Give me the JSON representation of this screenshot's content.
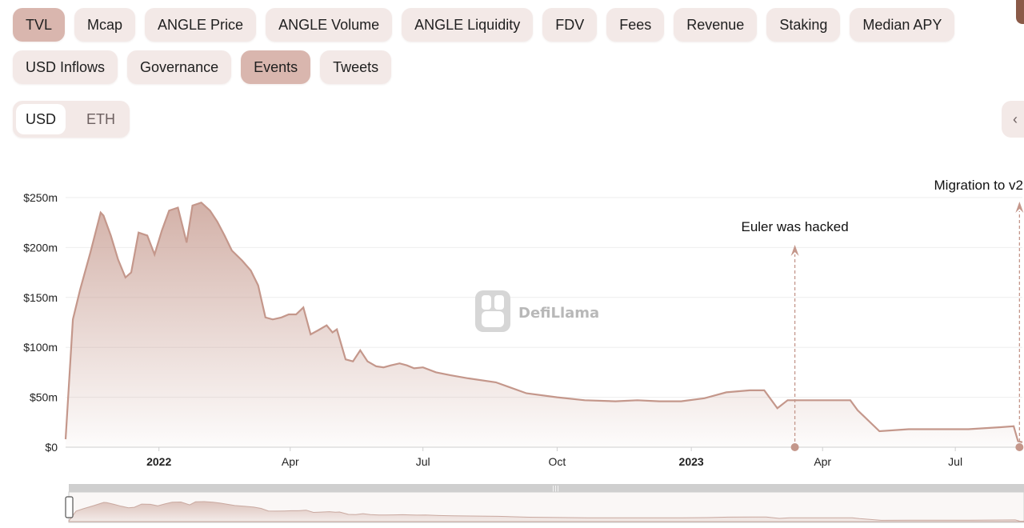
{
  "tabs_row1": [
    "TVL",
    "Mcap",
    "ANGLE Price",
    "ANGLE Volume",
    "ANGLE Liquidity",
    "FDV",
    "Fees",
    "Revenue",
    "Staking",
    "Median APY"
  ],
  "tabs_row2": [
    "USD Inflows",
    "Governance",
    "Events",
    "Tweets"
  ],
  "active_tabs": [
    "TVL",
    "Events"
  ],
  "currency": {
    "options": [
      "USD",
      "ETH"
    ],
    "selected": "USD"
  },
  "watermark": "DefiLlama",
  "colors": {
    "accent": "#c4978b",
    "tab_bg": "#f3e9e7",
    "tab_active": "#d9b6ae"
  },
  "chart_data": {
    "type": "area",
    "title": "",
    "xlabel": "",
    "ylabel": "",
    "y_ticks": [
      "$0",
      "$50m",
      "$100m",
      "$150m",
      "$200m",
      "$250m"
    ],
    "ylim": [
      0,
      250
    ],
    "y_unit": "$m",
    "xlim": [
      "2021-10-29",
      "2023-08-16"
    ],
    "x_ticks": [
      {
        "date": "2022-01-01",
        "label": "2022",
        "bold": true
      },
      {
        "date": "2022-04-01",
        "label": "Apr",
        "bold": false
      },
      {
        "date": "2022-07-01",
        "label": "Jul",
        "bold": false
      },
      {
        "date": "2022-10-01",
        "label": "Oct",
        "bold": false
      },
      {
        "date": "2023-01-01",
        "label": "2023",
        "bold": true
      },
      {
        "date": "2023-04-01",
        "label": "Apr",
        "bold": false
      },
      {
        "date": "2023-07-01",
        "label": "Jul",
        "bold": false
      }
    ],
    "grid": "horizontal",
    "series": [
      {
        "x": [
          "2021-10-29",
          "2021-11-03",
          "2021-11-08",
          "2021-11-15",
          "2021-11-22",
          "2021-11-24",
          "2021-11-29",
          "2021-12-04",
          "2021-12-09",
          "2021-12-13",
          "2021-12-18",
          "2021-12-24",
          "2021-12-29",
          "2022-01-03",
          "2022-01-08",
          "2022-01-14",
          "2022-01-20",
          "2022-01-24",
          "2022-01-30",
          "2022-02-05",
          "2022-02-10",
          "2022-02-15",
          "2022-02-20",
          "2022-02-27",
          "2022-03-05",
          "2022-03-10",
          "2022-03-15",
          "2022-03-20",
          "2022-03-26",
          "2022-03-31",
          "2022-04-05",
          "2022-04-10",
          "2022-04-15",
          "2022-04-20",
          "2022-04-26",
          "2022-04-30",
          "2022-05-03",
          "2022-05-09",
          "2022-05-14",
          "2022-05-19",
          "2022-05-24",
          "2022-05-30",
          "2022-06-04",
          "2022-06-09",
          "2022-06-15",
          "2022-06-20",
          "2022-06-25",
          "2022-07-01",
          "2022-07-10",
          "2022-07-20",
          "2022-08-01",
          "2022-08-20",
          "2022-09-10",
          "2022-10-01",
          "2022-10-20",
          "2022-11-10",
          "2022-11-25",
          "2022-12-10",
          "2022-12-25",
          "2023-01-10",
          "2023-01-25",
          "2023-02-10",
          "2023-02-20",
          "2023-03-01",
          "2023-03-08",
          "2023-03-13",
          "2023-03-14",
          "2023-03-20",
          "2023-04-01",
          "2023-04-20",
          "2023-04-25",
          "2023-05-10",
          "2023-05-30",
          "2023-06-20",
          "2023-07-10",
          "2023-08-01",
          "2023-08-10",
          "2023-08-13",
          "2023-08-16"
        ],
        "y": [
          8,
          128,
          158,
          195,
          235,
          232,
          212,
          188,
          170,
          175,
          215,
          212,
          193,
          217,
          237,
          240,
          205,
          242,
          245,
          237,
          226,
          212,
          197,
          187,
          177,
          162,
          130,
          128,
          130,
          133,
          133,
          140,
          113,
          117,
          122,
          115,
          118,
          88,
          86,
          97,
          86,
          81,
          80,
          82,
          84,
          82,
          79,
          80,
          75,
          72,
          69,
          65,
          54,
          50,
          47,
          46,
          47,
          46,
          46,
          49,
          55,
          57,
          57,
          39,
          47,
          47,
          47,
          47,
          47,
          47,
          37,
          16,
          18,
          18,
          18,
          20,
          21,
          6,
          5
        ]
      }
    ],
    "events": [
      {
        "date": "2023-03-13",
        "label": "Euler was hacked"
      },
      {
        "date": "2023-08-14",
        "label": "Migration to v2"
      }
    ]
  }
}
